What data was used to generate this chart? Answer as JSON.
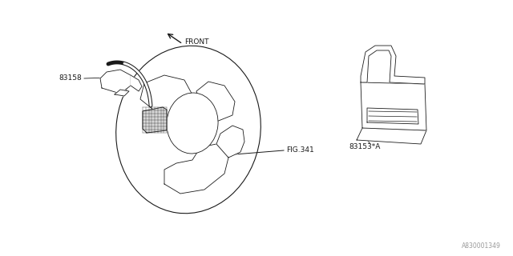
{
  "bg_color": "#ffffff",
  "line_color": "#1a1a1a",
  "fig_width": 6.4,
  "fig_height": 3.2,
  "dpi": 100,
  "watermark": "A830001349",
  "labels": {
    "fig341": "FIG.341",
    "p83153": "83153*A",
    "p83158": "83158",
    "front": "FRONT"
  }
}
